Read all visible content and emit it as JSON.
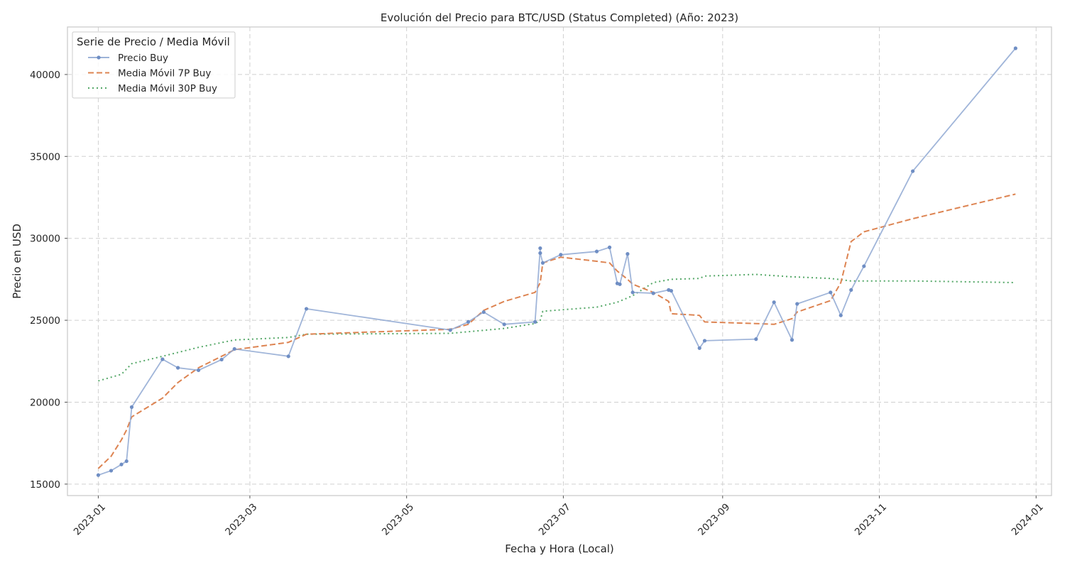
{
  "chart_data": {
    "type": "line",
    "title": "Evolución del Precio para BTC/USD (Status Completed) (Año: 2023)",
    "xlabel": "Fecha y Hora (Local)",
    "ylabel": "Precio en USD",
    "xlim": [
      "2022-12-20",
      "2024-01-07"
    ],
    "ylim": [
      14300,
      42900
    ],
    "x_ticks": [
      "2023-01",
      "2023-03",
      "2023-05",
      "2023-07",
      "2023-09",
      "2023-11",
      "2024-01"
    ],
    "y_ticks": [
      15000,
      20000,
      25000,
      30000,
      35000,
      40000
    ],
    "grid": true,
    "legend": {
      "title": "Serie de Precio / Media Móvil",
      "position": "top-left"
    },
    "series": [
      {
        "name": "Precio Buy",
        "color": "#8fa8d2",
        "style": "solid-with-markers",
        "points": [
          [
            "2023-01-01",
            15550
          ],
          [
            "2023-01-06",
            15820
          ],
          [
            "2023-01-10",
            16200
          ],
          [
            "2023-01-12",
            16400
          ],
          [
            "2023-01-14",
            19700
          ],
          [
            "2023-01-26",
            22620
          ],
          [
            "2023-02-01",
            22100
          ],
          [
            "2023-02-09",
            21950
          ],
          [
            "2023-02-18",
            22600
          ],
          [
            "2023-02-23",
            23250
          ],
          [
            "2023-03-16",
            22800
          ],
          [
            "2023-03-23",
            25700
          ],
          [
            "2023-05-18",
            24400
          ],
          [
            "2023-05-25",
            24900
          ],
          [
            "2023-05-31",
            25500
          ],
          [
            "2023-06-08",
            24750
          ],
          [
            "2023-06-20",
            24900
          ],
          [
            "2023-06-22",
            29400
          ],
          [
            "2023-06-22",
            29100
          ],
          [
            "2023-06-23",
            28500
          ],
          [
            "2023-06-30",
            29000
          ],
          [
            "2023-07-14",
            29200
          ],
          [
            "2023-07-19",
            29450
          ],
          [
            "2023-07-22",
            27250
          ],
          [
            "2023-07-23",
            27200
          ],
          [
            "2023-07-26",
            29050
          ],
          [
            "2023-07-28",
            26700
          ],
          [
            "2023-08-05",
            26650
          ],
          [
            "2023-08-11",
            26850
          ],
          [
            "2023-08-12",
            26800
          ],
          [
            "2023-08-23",
            23300
          ],
          [
            "2023-08-25",
            23750
          ],
          [
            "2023-09-14",
            23850
          ],
          [
            "2023-09-21",
            26100
          ],
          [
            "2023-09-28",
            23800
          ],
          [
            "2023-09-30",
            26000
          ],
          [
            "2023-10-13",
            26700
          ],
          [
            "2023-10-17",
            25300
          ],
          [
            "2023-10-21",
            26850
          ],
          [
            "2023-10-26",
            28300
          ],
          [
            "2023-11-14",
            34100
          ],
          [
            "2023-12-24",
            41600
          ]
        ]
      },
      {
        "name": "Media Móvil 7P Buy",
        "color": "#dd8452",
        "style": "dashed",
        "points": [
          [
            "2023-01-01",
            15950
          ],
          [
            "2023-01-06",
            16700
          ],
          [
            "2023-01-10",
            17700
          ],
          [
            "2023-01-12",
            18300
          ],
          [
            "2023-01-14",
            19100
          ],
          [
            "2023-01-26",
            20250
          ],
          [
            "2023-02-01",
            21200
          ],
          [
            "2023-02-09",
            22100
          ],
          [
            "2023-02-18",
            22800
          ],
          [
            "2023-02-23",
            23200
          ],
          [
            "2023-03-16",
            23650
          ],
          [
            "2023-03-23",
            24150
          ],
          [
            "2023-05-18",
            24450
          ],
          [
            "2023-05-25",
            24750
          ],
          [
            "2023-05-31",
            25600
          ],
          [
            "2023-06-08",
            26150
          ],
          [
            "2023-06-20",
            26700
          ],
          [
            "2023-06-22",
            27300
          ],
          [
            "2023-06-23",
            28500
          ],
          [
            "2023-06-30",
            28850
          ],
          [
            "2023-07-14",
            28600
          ],
          [
            "2023-07-19",
            28500
          ],
          [
            "2023-07-22",
            28000
          ],
          [
            "2023-07-26",
            27500
          ],
          [
            "2023-07-28",
            27200
          ],
          [
            "2023-08-05",
            26700
          ],
          [
            "2023-08-11",
            26150
          ],
          [
            "2023-08-12",
            25400
          ],
          [
            "2023-08-23",
            25300
          ],
          [
            "2023-08-25",
            24900
          ],
          [
            "2023-09-14",
            24800
          ],
          [
            "2023-09-21",
            24750
          ],
          [
            "2023-09-28",
            25100
          ],
          [
            "2023-09-30",
            25500
          ],
          [
            "2023-10-13",
            26200
          ],
          [
            "2023-10-17",
            27300
          ],
          [
            "2023-10-21",
            29800
          ],
          [
            "2023-10-26",
            30400
          ],
          [
            "2023-11-14",
            31200
          ],
          [
            "2023-12-24",
            32700
          ]
        ]
      },
      {
        "name": "Media Móvil 30P Buy",
        "color": "#55a868",
        "style": "dotted",
        "points": [
          [
            "2023-01-01",
            21300
          ],
          [
            "2023-01-10",
            21700
          ],
          [
            "2023-01-14",
            22350
          ],
          [
            "2023-01-26",
            22800
          ],
          [
            "2023-02-09",
            23350
          ],
          [
            "2023-02-23",
            23800
          ],
          [
            "2023-03-16",
            23950
          ],
          [
            "2023-03-23",
            24150
          ],
          [
            "2023-05-18",
            24200
          ],
          [
            "2023-06-08",
            24500
          ],
          [
            "2023-06-20",
            24800
          ],
          [
            "2023-06-22",
            25000
          ],
          [
            "2023-06-23",
            25550
          ],
          [
            "2023-07-14",
            25800
          ],
          [
            "2023-07-22",
            26100
          ],
          [
            "2023-07-28",
            26500
          ],
          [
            "2023-08-05",
            27300
          ],
          [
            "2023-08-12",
            27500
          ],
          [
            "2023-08-23",
            27550
          ],
          [
            "2023-08-25",
            27700
          ],
          [
            "2023-09-14",
            27800
          ],
          [
            "2023-09-28",
            27650
          ],
          [
            "2023-10-13",
            27550
          ],
          [
            "2023-10-21",
            27400
          ],
          [
            "2023-11-14",
            27400
          ],
          [
            "2023-12-24",
            27300
          ]
        ]
      }
    ]
  }
}
